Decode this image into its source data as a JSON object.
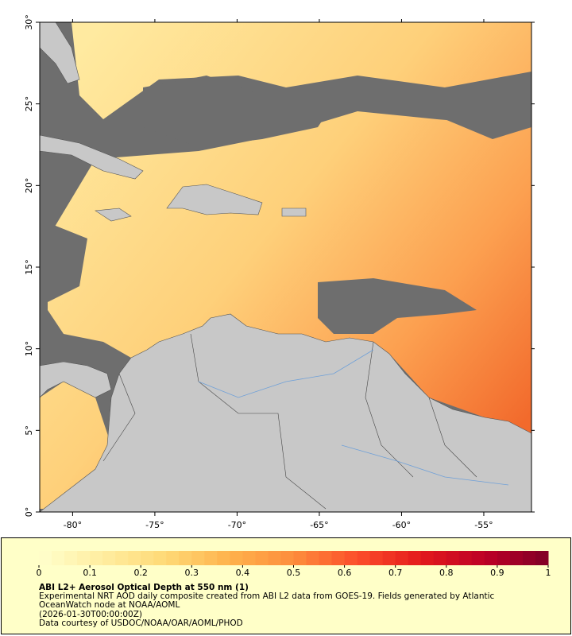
{
  "map": {
    "xlim": [
      -82,
      -52.1
    ],
    "ylim": [
      0,
      30
    ],
    "xticks": [
      {
        "value": -80,
        "label": "-80°"
      },
      {
        "value": -75,
        "label": "-75°"
      },
      {
        "value": -70,
        "label": "-70°"
      },
      {
        "value": -65,
        "label": "-65°"
      },
      {
        "value": -60,
        "label": "-60°"
      },
      {
        "value": -55,
        "label": "-55°"
      }
    ],
    "yticks": [
      {
        "value": 0,
        "label": "0°"
      },
      {
        "value": 5,
        "label": "5°"
      },
      {
        "value": 10,
        "label": "10°"
      },
      {
        "value": 15,
        "label": "15°"
      },
      {
        "value": 20,
        "label": "20°"
      },
      {
        "value": 25,
        "label": "25°"
      },
      {
        "value": 30,
        "label": "30°"
      }
    ]
  },
  "colorbar": {
    "lim": [
      0,
      1
    ],
    "ticks": [
      0,
      0.1,
      0.2,
      0.3,
      0.4,
      0.5,
      0.6,
      0.7,
      0.8,
      0.9,
      1
    ],
    "colors": [
      "#ffffcc",
      "#ffeda0",
      "#fed976",
      "#feb24c",
      "#fd8d3c",
      "#fc4e2a",
      "#e31a1c",
      "#bd0026",
      "#800026"
    ]
  },
  "caption": {
    "title": "ABI L2+ Aerosol Optical Depth at 550 nm (1)",
    "description": "Experimental NRT AOD daily composite created from ABI L2 data from GOES-19. Fields generated by Atlantic OceanWatch node at NOAA/AOML",
    "timestamp": "(2026-01-30T00:00:00Z)",
    "credit": "Data courtesy of USDOC/NOAA/OAR/AOML/PHOD"
  }
}
